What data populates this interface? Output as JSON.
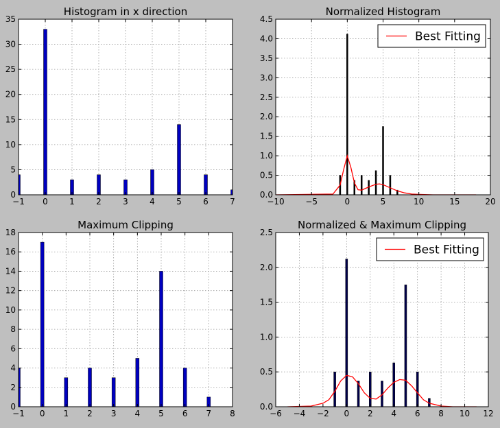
{
  "chart_data": [
    {
      "type": "bar",
      "title": "Histogram in x direction",
      "xlabel": "",
      "ylabel": "",
      "xlim": [
        -1,
        7
      ],
      "ylim": [
        0,
        35
      ],
      "xticks": [
        "−1",
        "0",
        "1",
        "2",
        "3",
        "4",
        "5",
        "6",
        "7"
      ],
      "yticks": [
        "0",
        "5",
        "10",
        "15",
        "20",
        "25",
        "30",
        "35"
      ],
      "grid": true,
      "bar_color": "#0000bf",
      "x": [
        -1,
        0,
        1,
        2,
        3,
        4,
        5,
        6,
        7
      ],
      "values": [
        4,
        33,
        3,
        4,
        3,
        5,
        14,
        4,
        1
      ]
    },
    {
      "type": "bar",
      "title": "Normalized Histogram",
      "xlabel": "",
      "ylabel": "",
      "xlim": [
        -10,
        20
      ],
      "ylim": [
        0,
        4.5
      ],
      "xticks": [
        "−10",
        "−5",
        "0",
        "5",
        "10",
        "15",
        "20"
      ],
      "yticks": [
        "0.0",
        "0.5",
        "1.0",
        "1.5",
        "2.0",
        "2.5",
        "3.0",
        "3.5",
        "4.0",
        "4.5"
      ],
      "grid": true,
      "bar_color": "#000000",
      "x": [
        -1,
        0,
        1,
        2,
        3,
        4,
        5,
        6,
        7
      ],
      "values": [
        0.5,
        4.12,
        0.37,
        0.5,
        0.37,
        0.62,
        1.75,
        0.5,
        0.12
      ],
      "legend": {
        "placement": "top-right",
        "entries": [
          "Best Fitting"
        ]
      },
      "series": [
        {
          "name": "Best Fitting",
          "color": "#ff0000",
          "x": [
            -10,
            -2,
            -1,
            -0.5,
            0,
            0.5,
            1,
            1.5,
            2,
            3,
            4,
            4.5,
            5,
            6,
            7,
            8,
            9,
            10,
            12,
            15,
            18
          ],
          "values": [
            0,
            0.02,
            0.25,
            0.65,
            1.0,
            0.7,
            0.3,
            0.13,
            0.12,
            0.2,
            0.27,
            0.28,
            0.26,
            0.18,
            0.1,
            0.05,
            0.02,
            0.01,
            0,
            0,
            0
          ]
        }
      ]
    },
    {
      "type": "bar",
      "title": "Maximum Clipping",
      "xlabel": "",
      "ylabel": "",
      "xlim": [
        -1,
        8
      ],
      "ylim": [
        0,
        18
      ],
      "xticks": [
        "−1",
        "0",
        "1",
        "2",
        "3",
        "4",
        "5",
        "6",
        "7",
        "8"
      ],
      "yticks": [
        "0",
        "2",
        "4",
        "6",
        "8",
        "10",
        "12",
        "14",
        "16",
        "18"
      ],
      "grid": true,
      "bar_color": "#0000bf",
      "x": [
        -1,
        0,
        1,
        2,
        3,
        4,
        5,
        6,
        7
      ],
      "values": [
        4,
        17,
        3,
        4,
        3,
        5,
        14,
        4,
        1
      ]
    },
    {
      "type": "bar",
      "title": "Normalized & Maximum Clipping",
      "xlabel": "",
      "ylabel": "",
      "xlim": [
        -6,
        12
      ],
      "ylim": [
        0,
        2.5
      ],
      "xticks": [
        "−6",
        "−4",
        "−2",
        "0",
        "2",
        "4",
        "6",
        "8",
        "10",
        "12"
      ],
      "yticks": [
        "0.0",
        "0.5",
        "1.0",
        "1.5",
        "2.0",
        "2.5"
      ],
      "grid": true,
      "bar_color": "#00004c",
      "x": [
        -1,
        0,
        1,
        2,
        3,
        4,
        5,
        6,
        7
      ],
      "values": [
        0.5,
        2.12,
        0.37,
        0.5,
        0.37,
        0.63,
        1.75,
        0.5,
        0.12
      ],
      "legend": {
        "placement": "top-right",
        "entries": [
          "Best Fitting"
        ]
      },
      "series": [
        {
          "name": "Best Fitting",
          "color": "#ff0000",
          "x": [
            -5,
            -3,
            -2,
            -1.5,
            -1,
            -0.5,
            0,
            0.5,
            1,
            1.5,
            2,
            2.5,
            3,
            3.5,
            4,
            4.5,
            5,
            5.5,
            6,
            6.5,
            7,
            8,
            9,
            10,
            11
          ],
          "values": [
            0,
            0.01,
            0.05,
            0.1,
            0.22,
            0.37,
            0.45,
            0.43,
            0.33,
            0.2,
            0.12,
            0.11,
            0.17,
            0.27,
            0.35,
            0.39,
            0.38,
            0.3,
            0.2,
            0.1,
            0.05,
            0.01,
            0,
            0,
            0
          ]
        }
      ]
    }
  ]
}
